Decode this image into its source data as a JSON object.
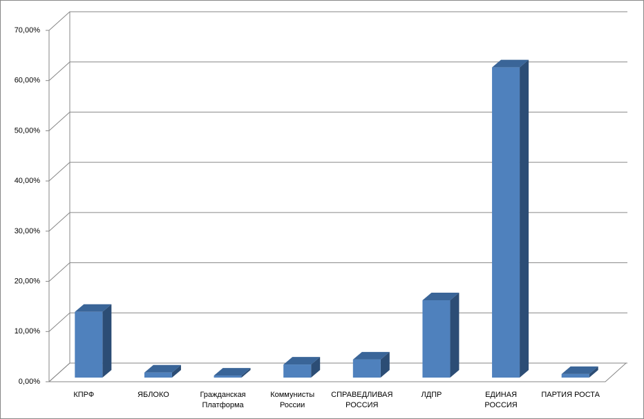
{
  "chart_data": {
    "type": "bar3d",
    "categories": [
      "КПРФ",
      "ЯБЛОКО",
      "Гражданская\nПлатформа",
      "Коммунисты\nРоссии",
      "СПРАВЕДЛИВАЯ\nРОССИЯ",
      "ЛДПР",
      "ЕДИНАЯ\nРОССИЯ",
      "ПАРТИЯ  РОСТА"
    ],
    "values": [
      13.1,
      1.0,
      0.4,
      2.6,
      3.6,
      15.4,
      61.8,
      0.7
    ],
    "color": "#4f81bd",
    "ylim": [
      0,
      70
    ],
    "yticks": [
      {
        "value": 0,
        "label": "0,00%"
      },
      {
        "value": 10,
        "label": "10,00%"
      },
      {
        "value": 20,
        "label": "20,00%"
      },
      {
        "value": 30,
        "label": "30,00%"
      },
      {
        "value": 40,
        "label": "40,00%"
      },
      {
        "value": 50,
        "label": "50,00%"
      },
      {
        "value": 60,
        "label": "60,00%"
      },
      {
        "value": 70,
        "label": "70,00%"
      }
    ],
    "grid": true
  }
}
